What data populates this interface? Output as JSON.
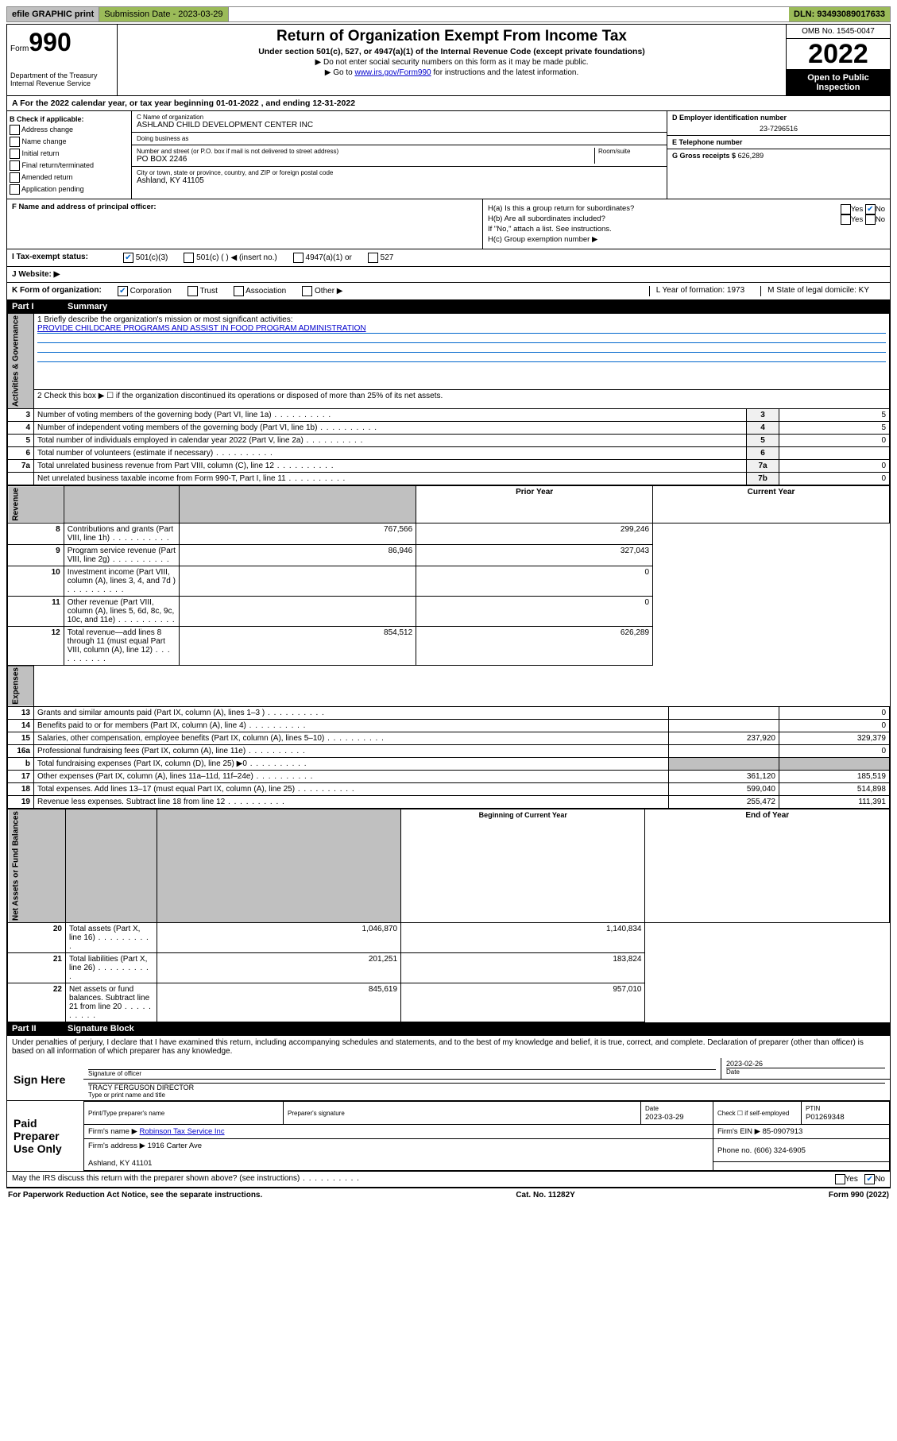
{
  "topbar": {
    "efile": "efile GRAPHIC print",
    "submission": "Submission Date - 2023-03-29",
    "dln": "DLN: 93493089017633"
  },
  "header": {
    "form_prefix": "Form",
    "form_no": "990",
    "title": "Return of Organization Exempt From Income Tax",
    "subtitle": "Under section 501(c), 527, or 4947(a)(1) of the Internal Revenue Code (except private foundations)",
    "note1": "▶ Do not enter social security numbers on this form as it may be made public.",
    "note2_pre": "▶ Go to ",
    "note2_link": "www.irs.gov/Form990",
    "note2_post": " for instructions and the latest information.",
    "dept": "Department of the Treasury\nInternal Revenue Service",
    "omb": "OMB No. 1545-0047",
    "year": "2022",
    "open": "Open to Public Inspection"
  },
  "row_a": "A For the 2022 calendar year, or tax year beginning 01-01-2022  , and ending 12-31-2022",
  "section_b": {
    "label": "B Check if applicable:",
    "items": [
      "Address change",
      "Name change",
      "Initial return",
      "Final return/terminated",
      "Amended return",
      "Application pending"
    ]
  },
  "section_c": {
    "name_label": "C Name of organization",
    "name": "ASHLAND CHILD DEVELOPMENT CENTER INC",
    "dba_label": "Doing business as",
    "addr_label": "Number and street (or P.O. box if mail is not delivered to street address)",
    "room_label": "Room/suite",
    "addr": "PO BOX 2246",
    "city_label": "City or town, state or province, country, and ZIP or foreign postal code",
    "city": "Ashland, KY  41105"
  },
  "section_d": {
    "label": "D Employer identification number",
    "val": "23-7296516"
  },
  "section_e": {
    "label": "E Telephone number",
    "val": ""
  },
  "section_g": {
    "label": "G Gross receipts $",
    "val": "626,289"
  },
  "section_f": {
    "label": "F  Name and address of principal officer:"
  },
  "section_h": {
    "ha": "H(a)  Is this a group return for subordinates?",
    "hb": "H(b)  Are all subordinates included?",
    "hnote": "If \"No,\" attach a list. See instructions.",
    "hc": "H(c)  Group exemption number ▶"
  },
  "row_i": {
    "label": "I  Tax-exempt status:",
    "opts": [
      "501(c)(3)",
      "501(c) (  ) ◀ (insert no.)",
      "4947(a)(1) or",
      "527"
    ]
  },
  "row_j": {
    "label": "J  Website: ▶"
  },
  "row_k": {
    "label": "K Form of organization:",
    "opts": [
      "Corporation",
      "Trust",
      "Association",
      "Other ▶"
    ],
    "l": "L Year of formation: 1973",
    "m": "M State of legal domicile: KY"
  },
  "parts": {
    "p1": {
      "num": "Part I",
      "title": "Summary"
    },
    "p2": {
      "num": "Part II",
      "title": "Signature Block"
    }
  },
  "summary": {
    "q1_label": "1  Briefly describe the organization's mission or most significant activities:",
    "q1_text": "PROVIDE CHILDCARE PROGRAMS AND ASSIST IN FOOD PROGRAM ADMINISTRATION",
    "q2": "2  Check this box ▶ ☐  if the organization discontinued its operations or disposed of more than 25% of its net assets.",
    "rows_gov": [
      {
        "n": "3",
        "t": "Number of voting members of the governing body (Part VI, line 1a)",
        "box": "3",
        "v": "5"
      },
      {
        "n": "4",
        "t": "Number of independent voting members of the governing body (Part VI, line 1b)",
        "box": "4",
        "v": "5"
      },
      {
        "n": "5",
        "t": "Total number of individuals employed in calendar year 2022 (Part V, line 2a)",
        "box": "5",
        "v": "0"
      },
      {
        "n": "6",
        "t": "Total number of volunteers (estimate if necessary)",
        "box": "6",
        "v": ""
      },
      {
        "n": "7a",
        "t": "Total unrelated business revenue from Part VIII, column (C), line 12",
        "box": "7a",
        "v": "0"
      },
      {
        "n": "",
        "t": "Net unrelated business taxable income from Form 990-T, Part I, line 11",
        "box": "7b",
        "v": "0"
      }
    ],
    "col_hdr_prior": "Prior Year",
    "col_hdr_curr": "Current Year",
    "rows_rev": [
      {
        "n": "8",
        "t": "Contributions and grants (Part VIII, line 1h)",
        "p": "767,566",
        "c": "299,246"
      },
      {
        "n": "9",
        "t": "Program service revenue (Part VIII, line 2g)",
        "p": "86,946",
        "c": "327,043"
      },
      {
        "n": "10",
        "t": "Investment income (Part VIII, column (A), lines 3, 4, and 7d )",
        "p": "",
        "c": "0"
      },
      {
        "n": "11",
        "t": "Other revenue (Part VIII, column (A), lines 5, 6d, 8c, 9c, 10c, and 11e)",
        "p": "",
        "c": "0"
      },
      {
        "n": "12",
        "t": "Total revenue—add lines 8 through 11 (must equal Part VIII, column (A), line 12)",
        "p": "854,512",
        "c": "626,289"
      }
    ],
    "rows_exp": [
      {
        "n": "13",
        "t": "Grants and similar amounts paid (Part IX, column (A), lines 1–3 )",
        "p": "",
        "c": "0"
      },
      {
        "n": "14",
        "t": "Benefits paid to or for members (Part IX, column (A), line 4)",
        "p": "",
        "c": "0"
      },
      {
        "n": "15",
        "t": "Salaries, other compensation, employee benefits (Part IX, column (A), lines 5–10)",
        "p": "237,920",
        "c": "329,379"
      },
      {
        "n": "16a",
        "t": "Professional fundraising fees (Part IX, column (A), line 11e)",
        "p": "",
        "c": "0"
      },
      {
        "n": "b",
        "t": "Total fundraising expenses (Part IX, column (D), line 25) ▶0",
        "p": "GRAY",
        "c": "GRAY"
      },
      {
        "n": "17",
        "t": "Other expenses (Part IX, column (A), lines 11a–11d, 11f–24e)",
        "p": "361,120",
        "c": "185,519"
      },
      {
        "n": "18",
        "t": "Total expenses. Add lines 13–17 (must equal Part IX, column (A), line 25)",
        "p": "599,040",
        "c": "514,898"
      },
      {
        "n": "19",
        "t": "Revenue less expenses. Subtract line 18 from line 12",
        "p": "255,472",
        "c": "111,391"
      }
    ],
    "col_hdr_beg": "Beginning of Current Year",
    "col_hdr_end": "End of Year",
    "rows_net": [
      {
        "n": "20",
        "t": "Total assets (Part X, line 16)",
        "p": "1,046,870",
        "c": "1,140,834"
      },
      {
        "n": "21",
        "t": "Total liabilities (Part X, line 26)",
        "p": "201,251",
        "c": "183,824"
      },
      {
        "n": "22",
        "t": "Net assets or fund balances. Subtract line 21 from line 20",
        "p": "845,619",
        "c": "957,010"
      }
    ],
    "side_labels": {
      "gov": "Activities & Governance",
      "rev": "Revenue",
      "exp": "Expenses",
      "net": "Net Assets or Fund Balances"
    }
  },
  "sig": {
    "perjury": "Under penalties of perjury, I declare that I have examined this return, including accompanying schedules and statements, and to the best of my knowledge and belief, it is true, correct, and complete. Declaration of preparer (other than officer) is based on all information of which preparer has any knowledge.",
    "sign_here": "Sign Here",
    "sig_officer": "Signature of officer",
    "date": "Date",
    "date_val": "2023-02-26",
    "name_line": "TRACY FERGUSON  DIRECTOR",
    "name_label": "Type or print name and title",
    "paid": "Paid Preparer Use Only",
    "prep_name_label": "Print/Type preparer's name",
    "prep_sig_label": "Preparer's signature",
    "prep_date_label": "Date",
    "prep_date": "2023-03-29",
    "self_emp": "Check ☐ if self-employed",
    "ptin_label": "PTIN",
    "ptin": "P01269348",
    "firm_name_label": "Firm's name    ▶",
    "firm_name": "Robinson Tax Service Inc",
    "firm_ein_label": "Firm's EIN ▶",
    "firm_ein": "85-0907913",
    "firm_addr_label": "Firm's address ▶",
    "firm_addr1": "1916 Carter Ave",
    "firm_addr2": "Ashland, KY  41101",
    "phone_label": "Phone no.",
    "phone": "(606) 324-6905",
    "discuss": "May the IRS discuss this return with the preparer shown above? (see instructions)"
  },
  "footer": {
    "left": "For Paperwork Reduction Act Notice, see the separate instructions.",
    "mid": "Cat. No. 11282Y",
    "right": "Form 990 (2022)"
  },
  "yes": "Yes",
  "no": "No"
}
